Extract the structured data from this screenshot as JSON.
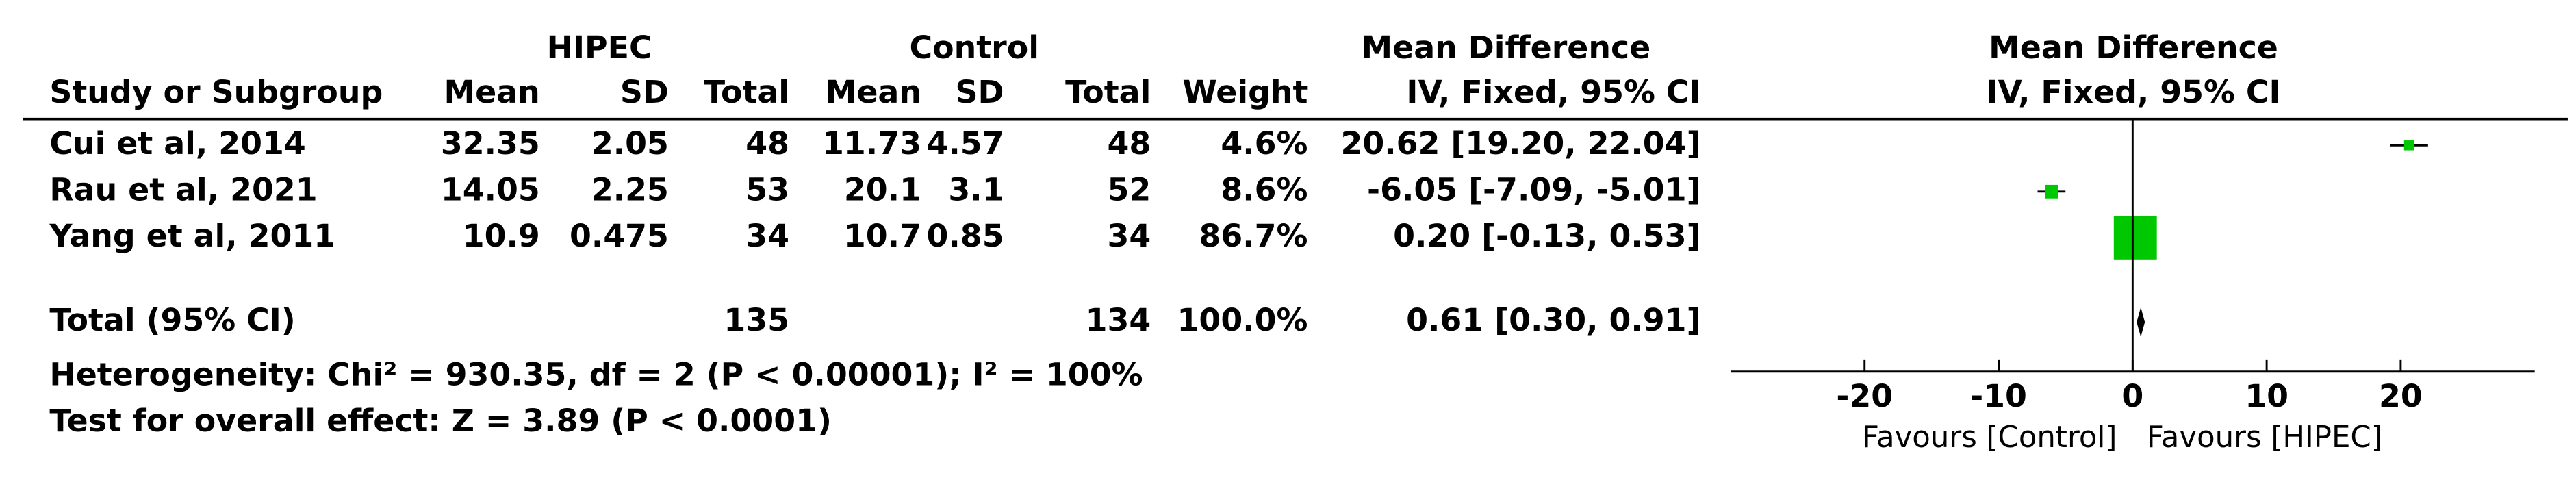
{
  "chart_data": {
    "type": "forest",
    "group_headers": [
      "HIPEC",
      "Control"
    ],
    "columns": [
      "Study or Subgroup",
      "Mean",
      "SD",
      "Total",
      "Mean",
      "SD",
      "Total",
      "Weight",
      "IV, Fixed, 95% CI"
    ],
    "md_header": "Mean Difference",
    "color": "#00c800",
    "studies": [
      {
        "name": "Cui et al, 2014",
        "hipec_mean": 32.35,
        "hipec_sd": 2.05,
        "hipec_total": 48,
        "control_mean": 11.73,
        "control_sd": 4.57,
        "control_total": 48,
        "weight": {
          "value": 4.6,
          "label": "4.6%"
        },
        "md": 20.62,
        "ci_low": 19.2,
        "ci_high": 22.04,
        "ci_label": "20.62 [19.20, 22.04]"
      },
      {
        "name": "Rau et al, 2021",
        "hipec_mean": 14.05,
        "hipec_sd": 2.25,
        "hipec_total": 53,
        "control_mean": 20.1,
        "control_sd": 3.1,
        "control_total": 52,
        "weight": {
          "value": 8.6,
          "label": "8.6%"
        },
        "md": -6.05,
        "ci_low": -7.09,
        "ci_high": -5.01,
        "ci_label": "-6.05 [-7.09, -5.01]"
      },
      {
        "name": "Yang et al, 2011",
        "hipec_mean": 10.9,
        "hipec_sd": 0.475,
        "hipec_total": 34,
        "control_mean": 10.7,
        "control_sd": 0.85,
        "control_total": 34,
        "weight": {
          "value": 86.7,
          "label": "86.7%"
        },
        "md": 0.2,
        "ci_low": -0.13,
        "ci_high": 0.53,
        "ci_label": "0.20 [-0.13, 0.53]"
      }
    ],
    "total": {
      "name": "Total (95% CI)",
      "hipec_total": 135,
      "control_total": 134,
      "weight": {
        "value": 100,
        "label": "100.0%"
      },
      "md": 0.61,
      "ci_low": 0.3,
      "ci_high": 0.91,
      "ci_label": "0.61 [0.30, 0.91]"
    },
    "heterogeneity": "Heterogeneity: Chi² = 930.35, df = 2 (P < 0.00001); I² = 100%",
    "overall_effect": "Test for overall effect: Z = 3.89 (P < 0.0001)",
    "xlim": [
      -30,
      30
    ],
    "xticks": [
      -20,
      -10,
      0,
      10,
      20
    ],
    "favours_left": "Favours [Control]",
    "favours_right": "Favours [HIPEC]"
  }
}
